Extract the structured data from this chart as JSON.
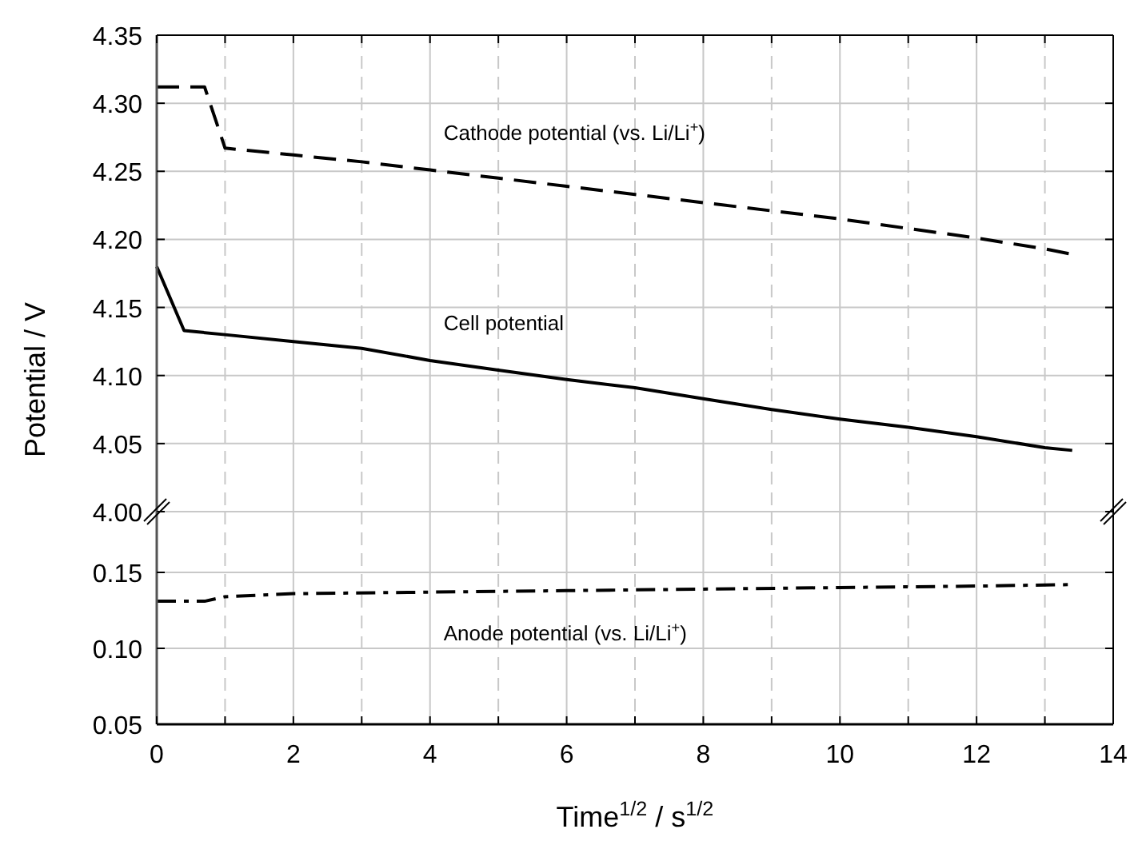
{
  "chart_data": [
    {
      "type": "line",
      "ylabel": "Potential / V",
      "xlim": [
        0,
        14
      ],
      "xticks": [
        0,
        {
          "value": 1,
          "label": null
        },
        2,
        {
          "value": 3,
          "label": null
        },
        4,
        {
          "value": 5,
          "label": null
        },
        6,
        {
          "value": 7,
          "label": null
        },
        8,
        {
          "value": 9,
          "label": null
        },
        10,
        {
          "value": 11,
          "label": null
        },
        12,
        {
          "value": 13,
          "label": null
        },
        14
      ],
      "ylim": [
        4.0,
        4.35
      ],
      "yticks": [
        {
          "value": 4.0,
          "label": "4.00"
        },
        4.05,
        {
          "value": 4.1,
          "label": "4.10"
        },
        4.15,
        {
          "value": 4.2,
          "label": "4.20"
        },
        4.25,
        {
          "value": 4.3,
          "label": "4.30"
        },
        4.35
      ],
      "grid": true,
      "tick_labels": "y",
      "series": [
        {
          "name": "Cathode potential (vs. Li/Li$^{+}$)",
          "color": "#000000",
          "line_style": "dashed",
          "x": [
            0,
            0.7,
            1.0,
            2,
            3,
            4,
            5,
            6,
            7,
            8,
            9,
            10,
            11,
            12,
            13,
            13.4
          ],
          "values": [
            4.312,
            4.312,
            4.267,
            4.262,
            4.257,
            4.251,
            4.245,
            4.239,
            4.233,
            4.227,
            4.221,
            4.215,
            4.208,
            4.201,
            4.193,
            4.189
          ]
        },
        {
          "name": "Cell potential",
          "color": "#000000",
          "line_style": "solid",
          "x": [
            0,
            0.4,
            1,
            2,
            3,
            4,
            5,
            6,
            7,
            8,
            9,
            10,
            11,
            12,
            13,
            13.4
          ],
          "values": [
            4.18,
            4.133,
            4.13,
            4.125,
            4.12,
            4.111,
            4.104,
            4.097,
            4.091,
            4.083,
            4.075,
            4.068,
            4.062,
            4.055,
            4.047,
            4.045
          ]
        }
      ]
    },
    {
      "type": "line",
      "xlabel": "Time$^{1/2}$ / s$^{1/2}$",
      "xlim": [
        0,
        14
      ],
      "xticks": [
        0,
        {
          "value": 1,
          "label": null
        },
        2,
        {
          "value": 3,
          "label": null
        },
        4,
        {
          "value": 5,
          "label": null
        },
        6,
        {
          "value": 7,
          "label": null
        },
        8,
        {
          "value": 9,
          "label": null
        },
        10,
        {
          "value": 11,
          "label": null
        },
        12,
        {
          "value": 13,
          "label": null
        },
        14
      ],
      "ylim": [
        0.05,
        0.19
      ],
      "yticks": [
        0.05,
        {
          "value": 0.1,
          "label": "0.10"
        },
        0.15
      ],
      "grid": true,
      "series": [
        {
          "name": "Anode potential (vs. Li/Li$^{+}$)",
          "color": "#000000",
          "line_style": "dashdot",
          "x": [
            0,
            0.7,
            1.0,
            2,
            4,
            6,
            8,
            10,
            12,
            13.4
          ],
          "values": [
            0.131,
            0.131,
            0.134,
            0.136,
            0.137,
            0.138,
            0.139,
            0.14,
            0.141,
            0.142
          ]
        }
      ]
    }
  ]
}
